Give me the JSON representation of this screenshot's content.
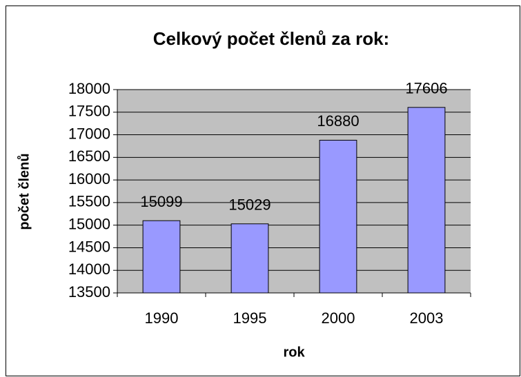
{
  "chart_data": {
    "type": "bar",
    "title": "Celkový počet členů za rok:",
    "x_label": "rok",
    "y_label": "počet členů",
    "categories": [
      "1990",
      "1995",
      "2000",
      "2003"
    ],
    "values": [
      15099,
      15029,
      16880,
      17606
    ],
    "color": "#9999ff",
    "ylim": [
      13500,
      18000
    ],
    "yticks": [
      13500,
      14000,
      14500,
      15000,
      15500,
      16000,
      16500,
      17000,
      17500,
      18000
    ],
    "grid": true
  }
}
